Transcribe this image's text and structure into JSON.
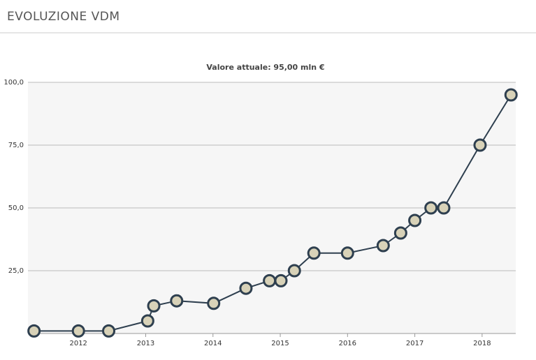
{
  "header": {
    "title": "EVOLUZIONE VDM"
  },
  "chart_data": {
    "type": "line",
    "title": "Valore attuale: 95,00 mln €",
    "x": [
      2011.34,
      2012.0,
      2012.45,
      2013.03,
      2013.12,
      2013.46,
      2014.01,
      2014.49,
      2014.84,
      2015.01,
      2015.21,
      2015.5,
      2016.0,
      2016.53,
      2016.79,
      2017.0,
      2017.24,
      2017.43,
      2017.97,
      2018.43
    ],
    "series": [
      {
        "color": "#2e3f4f",
        "values": [
          1,
          1,
          1,
          5,
          11,
          13,
          12,
          18,
          21,
          21,
          25,
          32,
          32,
          35,
          40,
          45,
          50,
          50,
          75,
          95
        ]
      }
    ],
    "xlim": [
      2011.25,
      2018.5
    ],
    "xticks": [
      2012,
      2013,
      2014,
      2015,
      2016,
      2017,
      2018
    ],
    "ylim": [
      0,
      100
    ],
    "yticks": [
      {
        "value": 25,
        "label": "25,0"
      },
      {
        "value": 50,
        "label": "50,0"
      },
      {
        "value": 75,
        "label": "75,0"
      },
      {
        "value": 100,
        "label": "100,0"
      }
    ],
    "grid": true
  }
}
